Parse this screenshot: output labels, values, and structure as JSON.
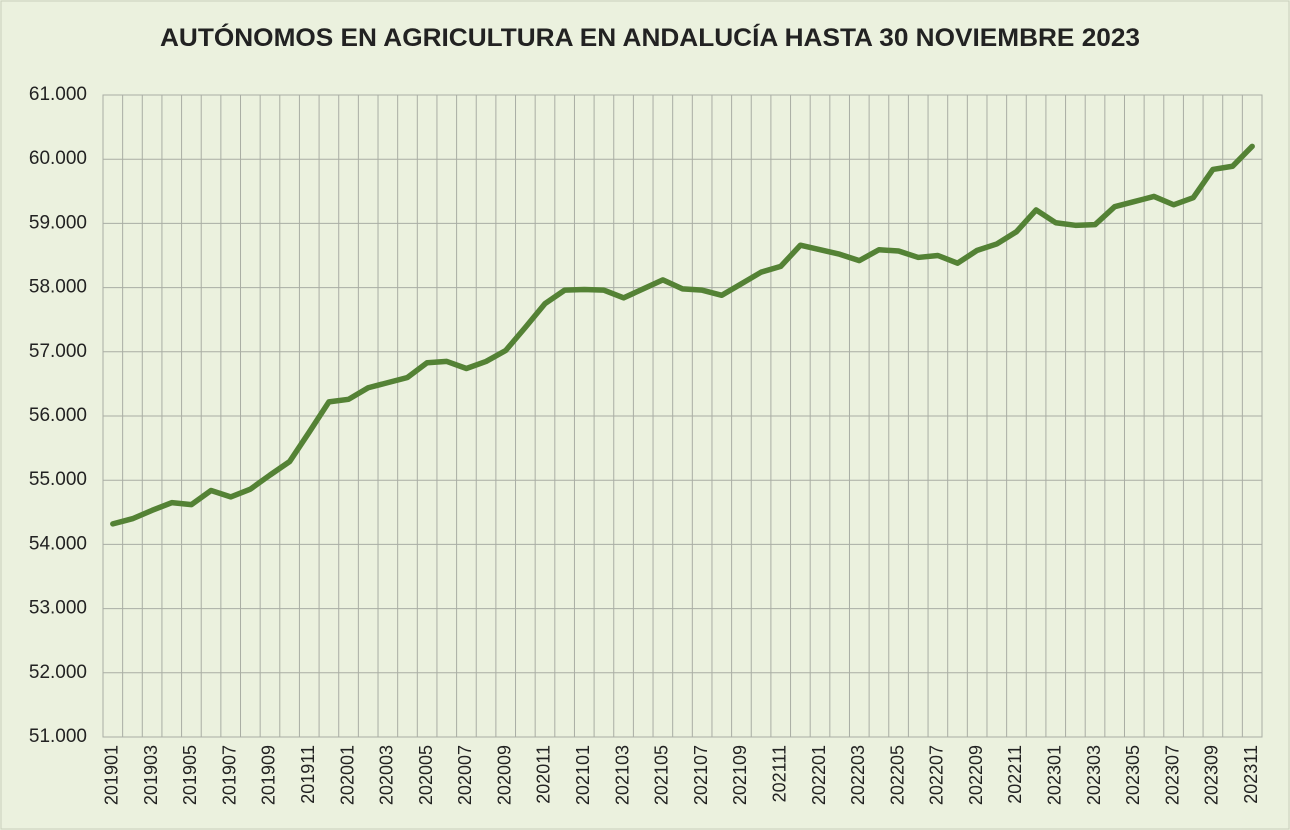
{
  "chart_data": {
    "type": "line",
    "title": "AUTÓNOMOS EN AGRICULTURA EN ANDALUCÍA HASTA 30 NOVIEMBRE 2023",
    "categories": [
      "201901",
      null,
      "201903",
      null,
      "201905",
      null,
      "201907",
      null,
      "201909",
      null,
      "201911",
      null,
      "202001",
      null,
      "202003",
      null,
      "202005",
      null,
      "202007",
      null,
      "202009",
      null,
      "202011",
      null,
      "202101",
      null,
      "202103",
      null,
      "202105",
      null,
      "202107",
      null,
      "202109",
      null,
      "202111",
      null,
      "202201",
      null,
      "202203",
      null,
      "202205",
      null,
      "202207",
      null,
      "202209",
      null,
      "202211",
      null,
      "202301",
      null,
      "202303",
      null,
      "202305",
      null,
      "202307",
      null,
      "202309",
      null,
      "202311"
    ],
    "values": [
      54320,
      54400,
      54530,
      54650,
      54620,
      54840,
      54740,
      54860,
      55080,
      55290,
      55750,
      56220,
      56260,
      56440,
      56520,
      56600,
      56830,
      56850,
      56740,
      56850,
      57020,
      57380,
      57750,
      57960,
      57970,
      57960,
      57840,
      57980,
      58120,
      57980,
      57960,
      57880,
      58060,
      58240,
      58330,
      58660,
      58590,
      58520,
      58420,
      58590,
      58570,
      58470,
      58500,
      58380,
      58580,
      58680,
      58870,
      59210,
      59010,
      58970,
      58980,
      59260,
      59340,
      59420,
      59290,
      59400,
      59840,
      59890,
      60200
    ],
    "color": "#548235",
    "ylim": [
      51000,
      61000
    ],
    "yticks": [
      {
        "value": 51000,
        "label": "51.000"
      },
      {
        "value": 52000,
        "label": "52.000"
      },
      {
        "value": 53000,
        "label": "53.000"
      },
      {
        "value": 54000,
        "label": "54.000"
      },
      {
        "value": 55000,
        "label": "55.000"
      },
      {
        "value": 56000,
        "label": "56.000"
      },
      {
        "value": 57000,
        "label": "57.000"
      },
      {
        "value": 58000,
        "label": "58.000"
      },
      {
        "value": 59000,
        "label": "59.000"
      },
      {
        "value": 60000,
        "label": "60.000"
      },
      {
        "value": 61000,
        "label": "61.000"
      }
    ],
    "grid": true
  }
}
